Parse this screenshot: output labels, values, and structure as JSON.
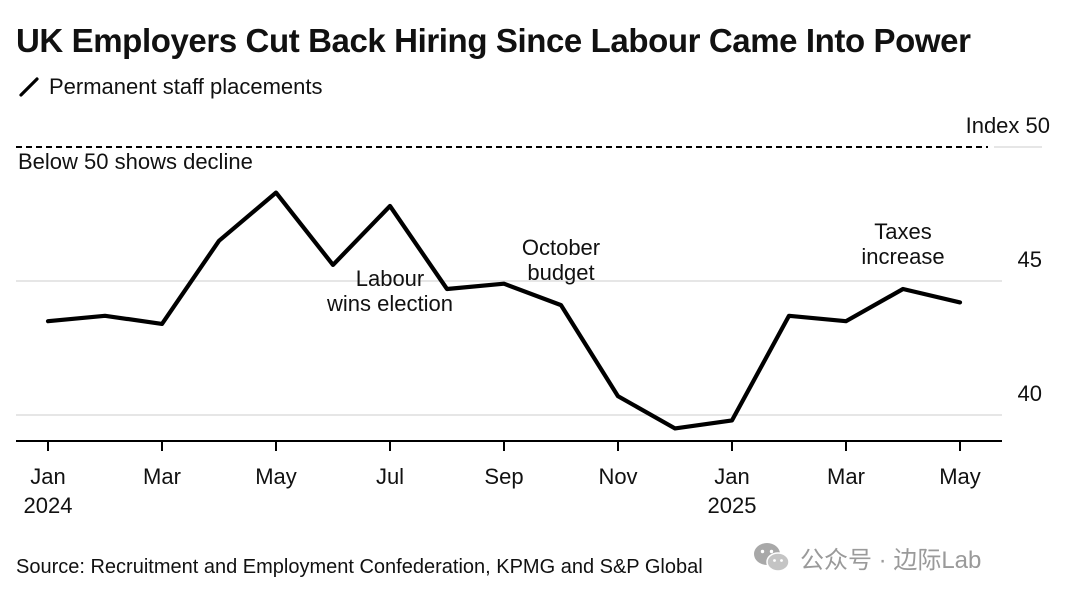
{
  "title": "UK Employers Cut Back Hiring Since Labour Came Into Power",
  "legend": {
    "label": "Permanent staff placements",
    "icon": "slash-line-icon"
  },
  "source": "Source: Recruitment and Employment Confederation, KPMG and S&P Global",
  "watermark": {
    "icon": "wechat-icon",
    "text": "公众号 · 边际Lab"
  },
  "colors": {
    "line": "#000000",
    "grid": "#d6d6d6",
    "text": "#111111",
    "watermark": "#9a9a9a"
  },
  "chart_data": {
    "type": "line",
    "title": "UK Employers Cut Back Hiring Since Labour Came Into Power",
    "x": [
      "2024-01",
      "2024-02",
      "2024-03",
      "2024-04",
      "2024-05",
      "2024-06",
      "2024-07",
      "2024-08",
      "2024-09",
      "2024-10",
      "2024-11",
      "2024-12",
      "2025-01",
      "2025-02",
      "2025-03",
      "2025-04",
      "2025-05"
    ],
    "x_tick_labels": [
      {
        "x": "2024-01",
        "label": "Jan",
        "sublabel": "2024"
      },
      {
        "x": "2024-03",
        "label": "Mar",
        "sublabel": ""
      },
      {
        "x": "2024-05",
        "label": "May",
        "sublabel": ""
      },
      {
        "x": "2024-07",
        "label": "Jul",
        "sublabel": ""
      },
      {
        "x": "2024-09",
        "label": "Sep",
        "sublabel": ""
      },
      {
        "x": "2024-11",
        "label": "Nov",
        "sublabel": ""
      },
      {
        "x": "2025-01",
        "label": "Jan",
        "sublabel": "2025"
      },
      {
        "x": "2025-03",
        "label": "Mar",
        "sublabel": ""
      },
      {
        "x": "2025-05",
        "label": "May",
        "sublabel": ""
      }
    ],
    "series": [
      {
        "name": "Permanent staff placements",
        "values": [
          43.5,
          43.7,
          43.4,
          46.5,
          48.3,
          45.6,
          47.8,
          44.7,
          44.9,
          44.1,
          40.7,
          39.5,
          39.8,
          43.7,
          43.5,
          44.7,
          44.2
        ]
      }
    ],
    "ylim": [
      39,
      50.5
    ],
    "y_ticks": [
      {
        "value": 40,
        "label": "40"
      },
      {
        "value": 45,
        "label": "45"
      }
    ],
    "reference_line": {
      "value": 50,
      "label": "Index 50",
      "note": "Below 50 shows decline",
      "style": "dashed"
    },
    "annotations": [
      {
        "x": "2024-07",
        "lines": [
          "Labour",
          "wins election"
        ]
      },
      {
        "x": "2024-10",
        "lines": [
          "October",
          "budget"
        ]
      },
      {
        "x": "2025-04",
        "lines": [
          "Taxes",
          "increase"
        ]
      }
    ],
    "grid": true,
    "xlabel": "",
    "ylabel": ""
  }
}
